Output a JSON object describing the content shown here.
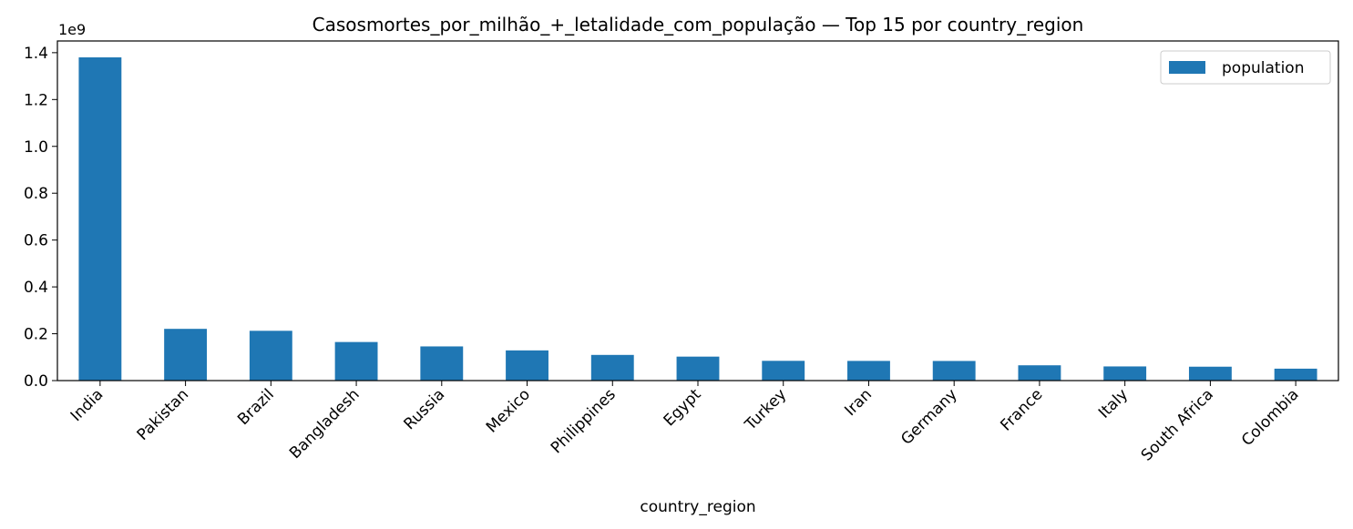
{
  "chart_data": {
    "type": "bar",
    "title": "Casosmortes_por_milhão_+_letalidade_com_população — Top 15 por country_region",
    "xlabel": "country_region",
    "ylabel": "",
    "offset_label": "1e9",
    "categories": [
      "India",
      "Pakistan",
      "Brazil",
      "Bangladesh",
      "Russia",
      "Mexico",
      "Philippines",
      "Egypt",
      "Turkey",
      "Iran",
      "Germany",
      "France",
      "Italy",
      "South Africa",
      "Colombia"
    ],
    "series": [
      {
        "name": "population",
        "color": "#1f77b4",
        "values": [
          1380004385,
          220892331,
          212559409,
          164689383,
          145934460,
          128932753,
          109581085,
          102334403,
          84339067,
          83992953,
          83783945,
          65273512,
          60461828,
          59308690,
          50882884
        ]
      }
    ],
    "ylim": [
      0,
      1450000000
    ],
    "yticks": [
      {
        "value": 0,
        "label": "0.0"
      },
      {
        "value": 200000000,
        "label": "0.2"
      },
      {
        "value": 400000000,
        "label": "0.4"
      },
      {
        "value": 600000000,
        "label": "0.6"
      },
      {
        "value": 800000000,
        "label": "0.8"
      },
      {
        "value": 1000000000,
        "label": "1.0"
      },
      {
        "value": 1200000000,
        "label": "1.2"
      },
      {
        "value": 1400000000,
        "label": "1.4"
      }
    ],
    "legend": "top-right",
    "grid": false
  }
}
